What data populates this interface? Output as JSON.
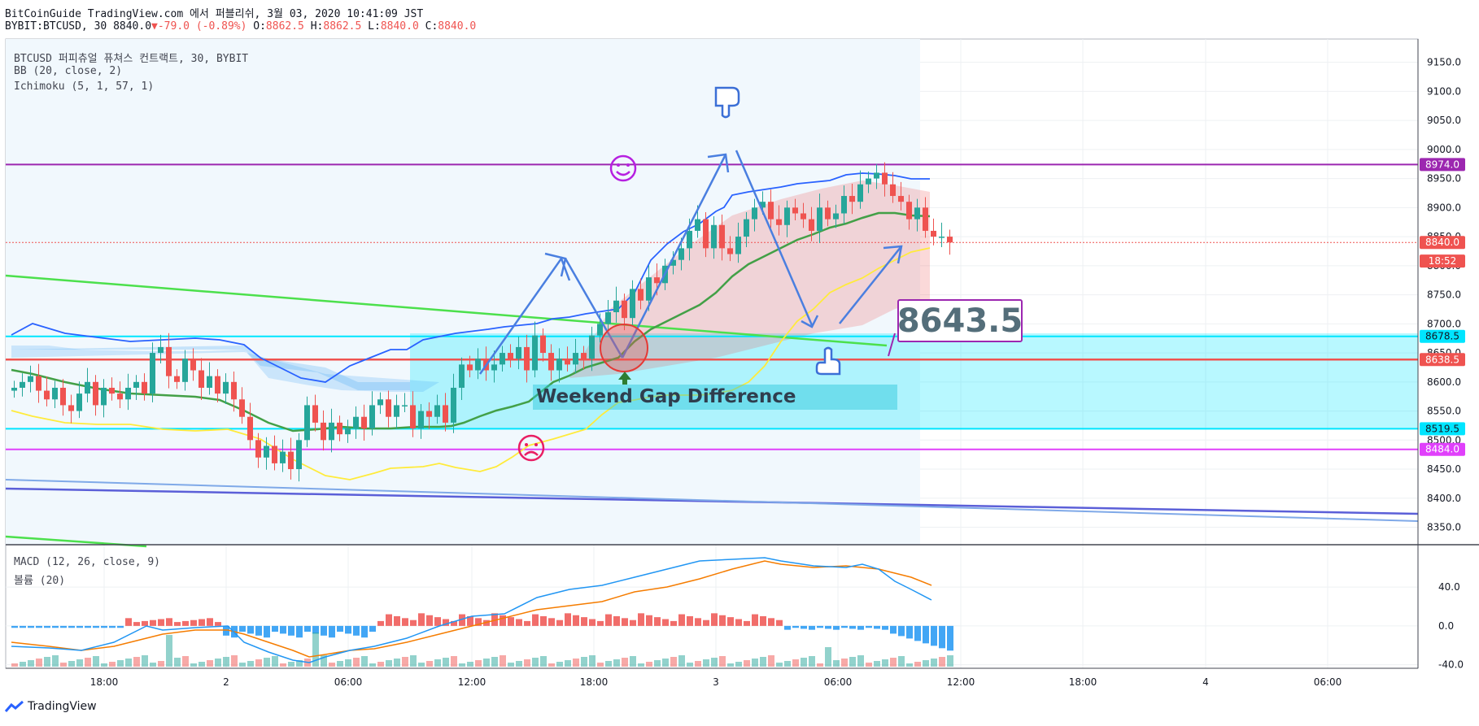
{
  "header": {
    "line1": "BitCoinGuide TradingView.com 에서 퍼블리쉬, 3월 03, 2020 10:41:09 JST",
    "symbol": "BYBIT:BTCUSD, 30",
    "last": "8840.0",
    "change": "-79.0 (-0.89%)",
    "o_label": "O:",
    "o": "8862.5",
    "h_label": "H:",
    "h": "8862.5",
    "l_label": "L:",
    "l": "8840.0",
    "c_label": "C:",
    "c": "8840.0"
  },
  "legend": {
    "title": "BTCUSD 퍼피츄얼 퓨쳐스 컨트랙트, 30, BYBIT",
    "bb": "BB (20, close, 2)",
    "ichimoku": "Ichimoku (5, 1, 57, 1)",
    "macd": "MACD (12, 26, close, 9)",
    "volume": "볼륨 (20)"
  },
  "annotations": {
    "callout": "8643.5",
    "gap": "Weekend Gap Difference"
  },
  "footer": {
    "brand": "TradingView"
  },
  "colors": {
    "up": "#26a69a",
    "down": "#ef5350",
    "purple": "#9c27b0",
    "magenta": "#e040fb",
    "cyan": "#00e5ff",
    "resistance_red": "#ef5350",
    "bb_blue": "#2962ff",
    "bb_mid_green": "#43a047",
    "yellow": "#ffeb3b",
    "arrow_blue": "#4a7fe0"
  },
  "chart_data": {
    "type": "line",
    "title": "",
    "xlabel": "",
    "ylabel": "",
    "ylim": [
      8320,
      9190
    ],
    "x_ticks": [
      "18:00",
      "2",
      "06:00",
      "12:00",
      "18:00",
      "3",
      "06:00",
      "12:00",
      "18:00",
      "4",
      "06:00"
    ],
    "y_ticks": [
      "9150.0",
      "9100.0",
      "9050.0",
      "9000.0",
      "8950.0",
      "8900.0",
      "8850.0",
      "8800.0",
      "8750.0",
      "8700.0",
      "8650.0",
      "8600.0",
      "8550.0",
      "8500.0",
      "8450.0",
      "8400.0",
      "8350.0"
    ],
    "price_levels": [
      {
        "label": "8974.0",
        "value": 8974.0,
        "color": "#9c27b0"
      },
      {
        "label": "8840.0",
        "value": 8840.0,
        "color": "#ef5350"
      },
      {
        "label": "18:52",
        "value": 8808.0,
        "color": "#ef5350"
      },
      {
        "label": "8678.5",
        "value": 8678.5,
        "color": "#00e5ff"
      },
      {
        "label": "8638.5",
        "value": 8638.5,
        "color": "#ef5350"
      },
      {
        "label": "8519.5",
        "value": 8519.5,
        "color": "#00e5ff"
      },
      {
        "label": "8484.0",
        "value": 8484.0,
        "color": "#e040fb"
      }
    ],
    "close_approx": [
      8590,
      8600,
      8610,
      8585,
      8570,
      8590,
      8560,
      8550,
      8580,
      8600,
      8560,
      8590,
      8580,
      8570,
      8590,
      8600,
      8580,
      8650,
      8660,
      8610,
      8600,
      8640,
      8620,
      8590,
      8610,
      8580,
      8600,
      8570,
      8540,
      8500,
      8470,
      8490,
      8460,
      8480,
      8450,
      8500,
      8560,
      8530,
      8500,
      8530,
      8510,
      8520,
      8540,
      8520,
      8560,
      8570,
      8540,
      8560,
      8560,
      8520,
      8550,
      8540,
      8560,
      8530,
      8590,
      8630,
      8620,
      8640,
      8620,
      8630,
      8650,
      8640,
      8660,
      8620,
      8680,
      8650,
      8620,
      8640,
      8630,
      8650,
      8640,
      8680,
      8700,
      8720,
      8740,
      8710,
      8760,
      8740,
      8780,
      8770,
      8800,
      8810,
      8830,
      8860,
      8880,
      8830,
      8870,
      8830,
      8820,
      8850,
      8880,
      8900,
      8910,
      8880,
      8870,
      8900,
      8890,
      8880,
      8860,
      8900,
      8880,
      8890,
      8920,
      8910,
      8940,
      8950,
      8960,
      8940,
      8920,
      8910,
      8880,
      8900,
      8860,
      8850,
      8850,
      8840
    ]
  },
  "macd_data": {
    "ticks": [
      "40.0",
      "0.0",
      "-40.0"
    ],
    "ylim": [
      -42,
      82
    ]
  }
}
